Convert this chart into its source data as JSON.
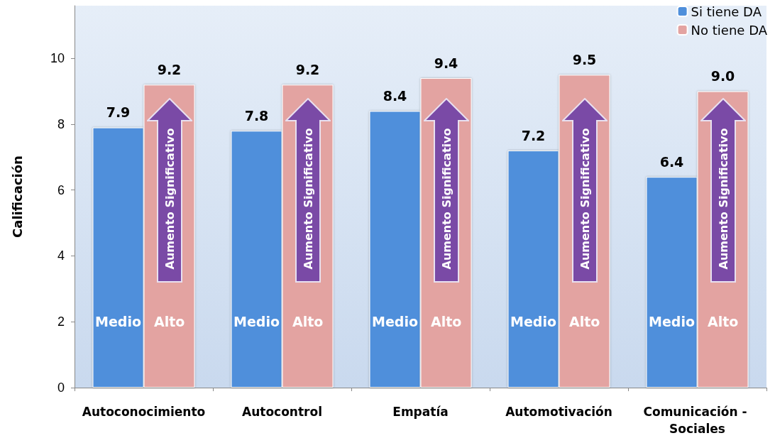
{
  "chart_data": {
    "type": "bar",
    "ylabel": "Calificación",
    "categories": [
      "Autoconocimiento",
      "Autocontrol",
      "Empatía",
      "Automotivación",
      "Comunicación - Sociales"
    ],
    "series": [
      {
        "name": "Si tiene DA",
        "color": "#4f8fdb",
        "values": [
          7.9,
          7.8,
          8.4,
          7.2,
          6.4
        ],
        "value_labels": [
          "7.9",
          "7.8",
          "8.4",
          "7.2",
          "6.4"
        ]
      },
      {
        "name": "No tiene DA",
        "color": "#e3a3a1",
        "values": [
          9.2,
          9.2,
          9.4,
          9.5,
          9.0
        ],
        "value_labels": [
          "9.2",
          "9.2",
          "9.4",
          "9.5",
          "9.0"
        ]
      }
    ],
    "ylim": [
      0,
      11.6
    ],
    "yticks": [
      0,
      2,
      4,
      6,
      8,
      10
    ],
    "grid": false,
    "legend": "top right",
    "annotations": [
      {
        "text": "Medio",
        "x": "Autoconocimiento",
        "y": 2
      },
      {
        "text": "Alto",
        "x": "Autoconocimiento",
        "y": 2
      },
      {
        "text": "Aumento Significativo",
        "x": "Autoconocimiento",
        "y": 6
      },
      {
        "text": "Medio",
        "x": "Autocontrol",
        "y": 2
      },
      {
        "text": "Alto",
        "x": "Autocontrol",
        "y": 2
      },
      {
        "text": "Aumento Significativo",
        "x": "Autocontrol",
        "y": 6
      },
      {
        "text": "Medio",
        "x": "Empatía",
        "y": 2
      },
      {
        "text": "Alto",
        "x": "Empatía",
        "y": 2
      },
      {
        "text": "Aumento Significativo",
        "x": "Empatía",
        "y": 6
      },
      {
        "text": "Medio",
        "x": "Automotivación",
        "y": 2
      },
      {
        "text": "Alto",
        "x": "Automotivación",
        "y": 2
      },
      {
        "text": "Aumento Significativo",
        "x": "Automotivación",
        "y": 6
      },
      {
        "text": "Medio",
        "x": "Comunicación - Sociales",
        "y": 2
      },
      {
        "text": "Alto",
        "x": "Comunicación - Sociales",
        "y": 2
      },
      {
        "text": "Aumento Significativo",
        "x": "Comunicación - Sociales",
        "y": 6
      }
    ]
  }
}
